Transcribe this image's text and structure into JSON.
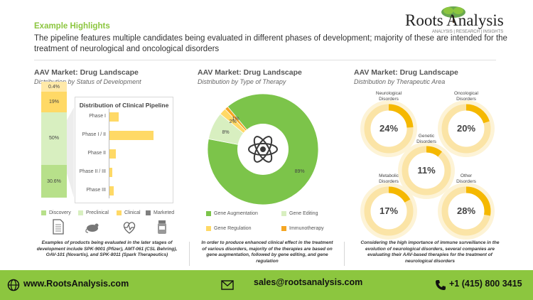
{
  "header": {
    "eyebrow": "Example Highlights",
    "intro": "The pipeline features multiple candidates being evaluated in different phases of development; majority of these are intended for the treatment of neurological and oncological disorders",
    "logo_name": "Roots Analysis",
    "logo_tagline": "ANALYSIS | RESEARCH | INSIGHTS"
  },
  "panel_status": {
    "title": "AAV Market: Drug Landscape",
    "subtitle": "Distribution by Status of Development",
    "pipeline_title": "Distribution of Clinical Pipeline",
    "caption": "Examples of products being evaluated in the later stages of development include SPK-9001 (Pfizer), AMT-061 (CSL Behring), OAV-101 (Novartis), and SPK-8011 (Spark Therapeutics)",
    "legend": [
      {
        "label": "Discovery",
        "color": "#b7e08a"
      },
      {
        "label": "Preclinical",
        "color": "#d8efc0"
      },
      {
        "label": "Clinical",
        "color": "#ffd966"
      },
      {
        "label": "Marketed",
        "color": "#7f7f7f"
      }
    ],
    "icons": [
      "document-icon",
      "lab-mouse-icon",
      "heartbeat-icon",
      "medicine-bottle-icon"
    ]
  },
  "panel_therapy": {
    "title": "AAV Market: Drug Landscape",
    "subtitle": "Distribution by Type of Therapy",
    "caption": "In order to produce enhanced clinical effect in the treatment of various disorders, majority of the therapies are based on gene augmentation, followed by gene editing, and gene regulation"
  },
  "panel_area": {
    "title": "AAV Market: Drug Landscape",
    "subtitle": "Distribution by Therapeutic Area",
    "caption": "Considering the high importance of immune surveillance in the evolution of neurological disorders, several companies are evaluating their AAV-based therapies for the treatment of neurological disorders",
    "areas": [
      {
        "label": "Neurological Disorders",
        "value": "24%",
        "fraction": 0.24
      },
      {
        "label": "Oncological Disorders",
        "value": "20%",
        "fraction": 0.2
      },
      {
        "label": "Genetic Disorders",
        "value": "11%",
        "fraction": 0.11
      },
      {
        "label": "Metabolic Disorders",
        "value": "17%",
        "fraction": 0.17
      },
      {
        "label": "Other Disorders",
        "value": "28%",
        "fraction": 0.28
      }
    ]
  },
  "footer": {
    "website": "www.RootsAnalysis.com",
    "email": "sales@rootsanalysis.com",
    "phone": "+1 (415) 800 3415",
    "color": "#8cc63f"
  },
  "chart_data": [
    {
      "type": "bar",
      "stacked": true,
      "categories": [
        "Status of Development"
      ],
      "series": [
        {
          "name": "Discovery",
          "values": [
            30.6
          ],
          "label": "30.6%"
        },
        {
          "name": "Preclinical",
          "values": [
            50
          ],
          "label": "50%"
        },
        {
          "name": "Clinical",
          "values": [
            19
          ],
          "label": "19%"
        },
        {
          "name": "Marketed",
          "values": [
            0.4
          ],
          "label": "0.4%"
        }
      ]
    },
    {
      "type": "bar",
      "orientation": "horizontal",
      "title": "Distribution of Clinical Pipeline",
      "categories": [
        "Phase I",
        "Phase I / II",
        "Phase II",
        "Phase II / III",
        "Phase III"
      ],
      "values": [
        5,
        24,
        3.5,
        1.5,
        2.5
      ]
    },
    {
      "type": "pie",
      "donut": true,
      "categories": [
        "Gene Augmentation",
        "Gene Editing",
        "Gene Regulation",
        "Immunotherapy"
      ],
      "values": [
        89,
        8,
        2,
        1
      ],
      "labels": [
        "89%",
        "8%",
        "2%",
        "1%"
      ],
      "colors": [
        "#7cc44a",
        "#d8efc0",
        "#ffd966",
        "#f5a623"
      ]
    }
  ]
}
